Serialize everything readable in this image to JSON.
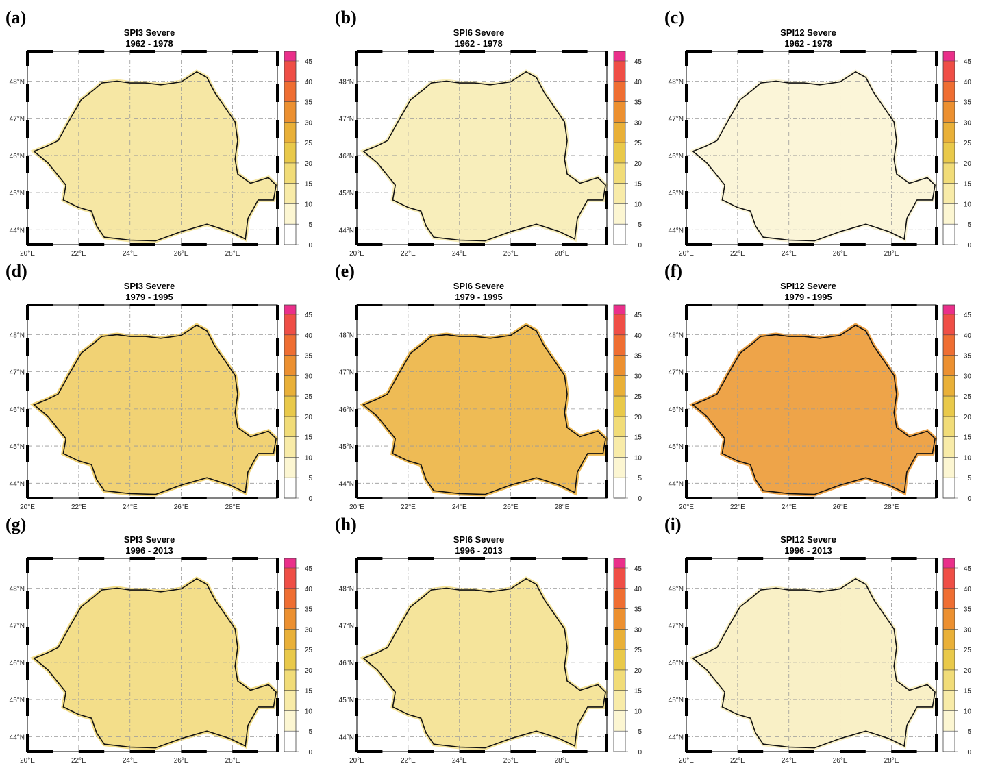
{
  "panels": [
    {
      "label": "(a)",
      "title": "SPI3 Severe",
      "period": "1962 - 1978",
      "fill": "#f6e7a4"
    },
    {
      "label": "(b)",
      "title": "SPI6 Severe",
      "period": "1962 - 1978",
      "fill": "#f8eebb"
    },
    {
      "label": "(c)",
      "title": "SPI12 Severe",
      "period": "1962 - 1978",
      "fill": "#fbf5d8"
    },
    {
      "label": "(d)",
      "title": "SPI3 Severe",
      "period": "1979 - 1995",
      "fill": "#f1d274"
    },
    {
      "label": "(e)",
      "title": "SPI6 Severe",
      "period": "1979 - 1995",
      "fill": "#eebb55"
    },
    {
      "label": "(f)",
      "title": "SPI12 Severe",
      "period": "1979 - 1995",
      "fill": "#eea449"
    },
    {
      "label": "(g)",
      "title": "SPI3 Severe",
      "period": "1996 - 2013",
      "fill": "#f3de8a"
    },
    {
      "label": "(h)",
      "title": "SPI6 Severe",
      "period": "1996 - 2013",
      "fill": "#f5e49b"
    },
    {
      "label": "(i)",
      "title": "SPI12 Severe",
      "period": "1996 - 2013",
      "fill": "#f9f0c6"
    }
  ],
  "colorbar": {
    "ticks": [
      0,
      5,
      10,
      15,
      20,
      25,
      30,
      35,
      40,
      45
    ],
    "colors": [
      "#ffffff",
      "#fcf6d2",
      "#f8eba8",
      "#f1dc78",
      "#e9c94a",
      "#e9b038",
      "#ec9030",
      "#ef6e32",
      "#ef4e46",
      "#ea2f8a"
    ]
  },
  "lon_labels": [
    "20°E",
    "22°E",
    "24°E",
    "26°E",
    "28°E"
  ],
  "lat_labels": [
    "44°N",
    "45°N",
    "46°N",
    "47°N",
    "48°N"
  ]
}
